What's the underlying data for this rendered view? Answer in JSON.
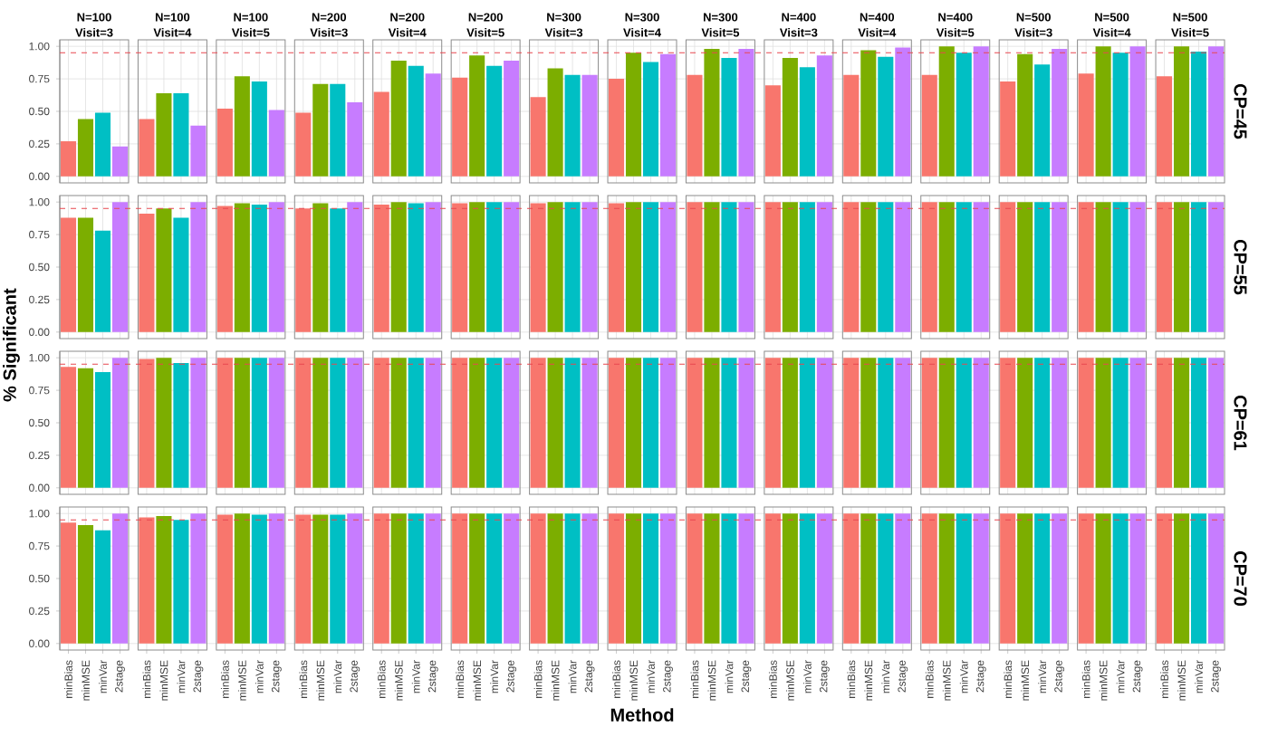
{
  "chart_data": [
    {
      "type": "bar",
      "y2label": "CP=45",
      "annotations": [
        "N=100",
        "Visit=3",
        "N=100",
        "Visit=4",
        "N=100",
        "Visit=5",
        "N=200",
        "Visit=3",
        "N=200",
        "Visit=4",
        "N=200",
        "Visit=5",
        "N=300",
        "Visit=3",
        "N=300",
        "Visit=4",
        "N=300",
        "Visit=5",
        "N=400",
        "Visit=3",
        "N=400",
        "Visit=4",
        "N=400",
        "Visit=5",
        "N=500",
        "Visit=3",
        "N=500",
        "Visit=4",
        "N=500",
        "Visit=5"
      ],
      "categories": [
        null,
        null,
        null,
        null,
        null,
        null,
        null,
        null,
        null,
        null,
        null,
        null,
        null,
        null,
        null,
        null,
        null,
        null,
        null,
        null,
        null,
        null,
        null,
        null,
        null,
        null,
        null,
        null,
        null,
        null,
        null,
        null,
        null,
        null,
        null,
        null,
        null,
        null,
        null,
        null,
        null,
        null,
        null,
        null,
        null,
        null,
        null,
        null,
        null,
        null,
        null,
        null,
        null,
        null,
        null,
        null,
        null,
        null,
        null,
        null
      ],
      "values": [
        0.27,
        0.44,
        0.49,
        0.23,
        0.44,
        0.64,
        0.64,
        0.39,
        0.52,
        0.77,
        0.73,
        0.51,
        0.49,
        0.71,
        0.71,
        0.57,
        0.65,
        0.89,
        0.85,
        0.79,
        0.76,
        0.93,
        0.85,
        0.89,
        0.61,
        0.83,
        0.78,
        0.78,
        0.75,
        0.95,
        0.88,
        0.94,
        0.78,
        0.98,
        0.91,
        0.98,
        0.7,
        0.91,
        0.84,
        0.93,
        0.78,
        0.97,
        0.92,
        0.99,
        0.78,
        1.0,
        0.95,
        1.0,
        0.73,
        0.94,
        0.86,
        0.98,
        0.79,
        1.0,
        0.95,
        1.0,
        0.77,
        1.0,
        0.96,
        1.0
      ],
      "colors": [
        "#f8766d",
        "#7cae00",
        "#00bfc4",
        "#c77cff",
        "#f8766d",
        "#7cae00",
        "#00bfc4",
        "#c77cff",
        "#f8766d",
        "#7cae00",
        "#00bfc4",
        "#c77cff",
        "#f8766d",
        "#7cae00",
        "#00bfc4",
        "#c77cff",
        "#f8766d",
        "#7cae00",
        "#00bfc4",
        "#c77cff",
        "#f8766d",
        "#7cae00",
        "#00bfc4",
        "#c77cff",
        "#f8766d",
        "#7cae00",
        "#00bfc4",
        "#c77cff",
        "#f8766d",
        "#7cae00",
        "#00bfc4",
        "#c77cff",
        "#f8766d",
        "#7cae00",
        "#00bfc4",
        "#c77cff",
        "#f8766d",
        "#7cae00",
        "#00bfc4",
        "#c77cff",
        "#f8766d",
        "#7cae00",
        "#00bfc4",
        "#c77cff",
        "#f8766d",
        "#7cae00",
        "#00bfc4",
        "#c77cff",
        "#f8766d",
        "#7cae00",
        "#00bfc4",
        "#c77cff",
        "#f8766d",
        "#7cae00",
        "#00bfc4",
        "#c77cff",
        "#f8766d",
        "#7cae00",
        "#00bfc4",
        "#c77cff"
      ],
      "ylim": [
        -0.05,
        1.05
      ],
      "yticks": [
        {
          "value": 0,
          "label": "0.00"
        },
        {
          "value": 0.25,
          "label": "0.25"
        },
        {
          "value": 0.5,
          "label": "0.50"
        },
        {
          "value": 0.75,
          "label": "0.75"
        },
        {
          "value": 1,
          "label": "1.00"
        }
      ],
      "ref_lines": [
        {
          "axis": "y",
          "value": 0.95,
          "color": "#e8474f",
          "line_style": "dashed"
        }
      ],
      "grid": true,
      "tick_labels": "y"
    },
    {
      "type": "bar",
      "y2label": "CP=55",
      "ylabel": "% Significant",
      "categories": [
        null,
        null,
        null,
        null,
        null,
        null,
        null,
        null,
        null,
        null,
        null,
        null,
        null,
        null,
        null,
        null,
        null,
        null,
        null,
        null,
        null,
        null,
        null,
        null,
        null,
        null,
        null,
        null,
        null,
        null,
        null,
        null,
        null,
        null,
        null,
        null,
        null,
        null,
        null,
        null,
        null,
        null,
        null,
        null,
        null,
        null,
        null,
        null,
        null,
        null,
        null,
        null,
        null,
        null,
        null,
        null,
        null,
        null,
        null,
        null
      ],
      "values": [
        0.88,
        0.88,
        0.78,
        1.0,
        0.91,
        0.95,
        0.88,
        1.0,
        0.97,
        0.99,
        0.98,
        1.0,
        0.95,
        0.99,
        0.95,
        1.0,
        0.98,
        1.0,
        0.99,
        1.0,
        0.99,
        1.0,
        1.0,
        1.0,
        0.99,
        1.0,
        1.0,
        1.0,
        0.99,
        1.0,
        1.0,
        1.0,
        1.0,
        1.0,
        1.0,
        1.0,
        1.0,
        1.0,
        1.0,
        1.0,
        1.0,
        1.0,
        1.0,
        1.0,
        1.0,
        1.0,
        1.0,
        1.0,
        1.0,
        1.0,
        1.0,
        1.0,
        1.0,
        1.0,
        1.0,
        1.0,
        1.0,
        1.0,
        1.0,
        1.0
      ],
      "colors": [
        "#f8766d",
        "#7cae00",
        "#00bfc4",
        "#c77cff",
        "#f8766d",
        "#7cae00",
        "#00bfc4",
        "#c77cff",
        "#f8766d",
        "#7cae00",
        "#00bfc4",
        "#c77cff",
        "#f8766d",
        "#7cae00",
        "#00bfc4",
        "#c77cff",
        "#f8766d",
        "#7cae00",
        "#00bfc4",
        "#c77cff",
        "#f8766d",
        "#7cae00",
        "#00bfc4",
        "#c77cff",
        "#f8766d",
        "#7cae00",
        "#00bfc4",
        "#c77cff",
        "#f8766d",
        "#7cae00",
        "#00bfc4",
        "#c77cff",
        "#f8766d",
        "#7cae00",
        "#00bfc4",
        "#c77cff",
        "#f8766d",
        "#7cae00",
        "#00bfc4",
        "#c77cff",
        "#f8766d",
        "#7cae00",
        "#00bfc4",
        "#c77cff",
        "#f8766d",
        "#7cae00",
        "#00bfc4",
        "#c77cff",
        "#f8766d",
        "#7cae00",
        "#00bfc4",
        "#c77cff",
        "#f8766d",
        "#7cae00",
        "#00bfc4",
        "#c77cff",
        "#f8766d",
        "#7cae00",
        "#00bfc4",
        "#c77cff"
      ],
      "ylim": [
        -0.05,
        1.05
      ],
      "yticks": [
        {
          "value": 0,
          "label": "0.00"
        },
        {
          "value": 0.25,
          "label": "0.25"
        },
        {
          "value": 0.5,
          "label": "0.50"
        },
        {
          "value": 0.75,
          "label": "0.75"
        },
        {
          "value": 1,
          "label": "1.00"
        }
      ],
      "ref_lines": [
        {
          "axis": "y",
          "value": 0.95,
          "color": "#e8474f",
          "line_style": "dashed"
        }
      ],
      "grid": true,
      "tick_labels": "y"
    },
    {
      "type": "bar",
      "y2label": "CP=61",
      "categories": [
        null,
        null,
        null,
        null,
        null,
        null,
        null,
        null,
        null,
        null,
        null,
        null,
        null,
        null,
        null,
        null,
        null,
        null,
        null,
        null,
        null,
        null,
        null,
        null,
        null,
        null,
        null,
        null,
        null,
        null,
        null,
        null,
        null,
        null,
        null,
        null,
        null,
        null,
        null,
        null,
        null,
        null,
        null,
        null,
        null,
        null,
        null,
        null,
        null,
        null,
        null,
        null,
        null,
        null,
        null,
        null,
        null,
        null,
        null,
        null
      ],
      "values": [
        0.93,
        0.92,
        0.89,
        1.0,
        0.99,
        1.0,
        0.96,
        1.0,
        1.0,
        1.0,
        1.0,
        1.0,
        1.0,
        1.0,
        1.0,
        1.0,
        1.0,
        1.0,
        1.0,
        1.0,
        1.0,
        1.0,
        1.0,
        1.0,
        1.0,
        1.0,
        1.0,
        1.0,
        1.0,
        1.0,
        1.0,
        1.0,
        1.0,
        1.0,
        1.0,
        1.0,
        1.0,
        1.0,
        1.0,
        1.0,
        1.0,
        1.0,
        1.0,
        1.0,
        1.0,
        1.0,
        1.0,
        1.0,
        1.0,
        1.0,
        1.0,
        1.0,
        1.0,
        1.0,
        1.0,
        1.0,
        1.0,
        1.0,
        1.0,
        1.0
      ],
      "colors": [
        "#f8766d",
        "#7cae00",
        "#00bfc4",
        "#c77cff",
        "#f8766d",
        "#7cae00",
        "#00bfc4",
        "#c77cff",
        "#f8766d",
        "#7cae00",
        "#00bfc4",
        "#c77cff",
        "#f8766d",
        "#7cae00",
        "#00bfc4",
        "#c77cff",
        "#f8766d",
        "#7cae00",
        "#00bfc4",
        "#c77cff",
        "#f8766d",
        "#7cae00",
        "#00bfc4",
        "#c77cff",
        "#f8766d",
        "#7cae00",
        "#00bfc4",
        "#c77cff",
        "#f8766d",
        "#7cae00",
        "#00bfc4",
        "#c77cff",
        "#f8766d",
        "#7cae00",
        "#00bfc4",
        "#c77cff",
        "#f8766d",
        "#7cae00",
        "#00bfc4",
        "#c77cff",
        "#f8766d",
        "#7cae00",
        "#00bfc4",
        "#c77cff",
        "#f8766d",
        "#7cae00",
        "#00bfc4",
        "#c77cff",
        "#f8766d",
        "#7cae00",
        "#00bfc4",
        "#c77cff",
        "#f8766d",
        "#7cae00",
        "#00bfc4",
        "#c77cff",
        "#f8766d",
        "#7cae00",
        "#00bfc4",
        "#c77cff"
      ],
      "ylim": [
        -0.05,
        1.05
      ],
      "yticks": [
        {
          "value": 0,
          "label": "0.00"
        },
        {
          "value": 0.25,
          "label": "0.25"
        },
        {
          "value": 0.5,
          "label": "0.50"
        },
        {
          "value": 0.75,
          "label": "0.75"
        },
        {
          "value": 1,
          "label": "1.00"
        }
      ],
      "ref_lines": [
        {
          "axis": "y",
          "value": 0.95,
          "color": "#e8474f",
          "line_style": "dashed"
        }
      ],
      "grid": true,
      "tick_labels": "y"
    },
    {
      "type": "bar",
      "y2label": "CP=70",
      "xlabel": "Method",
      "categories": [
        "minBias",
        "minMSE",
        "minVar",
        "2stage",
        "minBias",
        "minMSE",
        "minVar",
        "2stage",
        "minBias",
        "minMSE",
        "minVar",
        "2stage",
        "minBias",
        "minMSE",
        "minVar",
        "2stage",
        "minBias",
        "minMSE",
        "minVar",
        "2stage",
        "minBias",
        "minMSE",
        "minVar",
        "2stage",
        "minBias",
        "minMSE",
        "minVar",
        "2stage",
        "minBias",
        "minMSE",
        "minVar",
        "2stage",
        "minBias",
        "minMSE",
        "minVar",
        "2stage",
        "minBias",
        "minMSE",
        "minVar",
        "2stage",
        "minBias",
        "minMSE",
        "minVar",
        "2stage",
        "minBias",
        "minMSE",
        "minVar",
        "2stage",
        "minBias",
        "minMSE",
        "minVar",
        "2stage",
        "minBias",
        "minMSE",
        "minVar",
        "2stage",
        "minBias",
        "minMSE",
        "minVar",
        "2stage"
      ],
      "values": [
        0.93,
        0.91,
        0.87,
        1.0,
        0.97,
        0.98,
        0.95,
        1.0,
        0.99,
        1.0,
        0.99,
        1.0,
        0.99,
        0.99,
        0.99,
        1.0,
        1.0,
        1.0,
        1.0,
        1.0,
        1.0,
        1.0,
        1.0,
        1.0,
        1.0,
        1.0,
        1.0,
        1.0,
        1.0,
        1.0,
        1.0,
        1.0,
        1.0,
        1.0,
        1.0,
        1.0,
        1.0,
        1.0,
        1.0,
        1.0,
        1.0,
        1.0,
        1.0,
        1.0,
        1.0,
        1.0,
        1.0,
        1.0,
        1.0,
        1.0,
        1.0,
        1.0,
        1.0,
        1.0,
        1.0,
        1.0,
        1.0,
        1.0,
        1.0,
        1.0
      ],
      "colors": [
        "#f8766d",
        "#7cae00",
        "#00bfc4",
        "#c77cff",
        "#f8766d",
        "#7cae00",
        "#00bfc4",
        "#c77cff",
        "#f8766d",
        "#7cae00",
        "#00bfc4",
        "#c77cff",
        "#f8766d",
        "#7cae00",
        "#00bfc4",
        "#c77cff",
        "#f8766d",
        "#7cae00",
        "#00bfc4",
        "#c77cff",
        "#f8766d",
        "#7cae00",
        "#00bfc4",
        "#c77cff",
        "#f8766d",
        "#7cae00",
        "#00bfc4",
        "#c77cff",
        "#f8766d",
        "#7cae00",
        "#00bfc4",
        "#c77cff",
        "#f8766d",
        "#7cae00",
        "#00bfc4",
        "#c77cff",
        "#f8766d",
        "#7cae00",
        "#00bfc4",
        "#c77cff",
        "#f8766d",
        "#7cae00",
        "#00bfc4",
        "#c77cff",
        "#f8766d",
        "#7cae00",
        "#00bfc4",
        "#c77cff",
        "#f8766d",
        "#7cae00",
        "#00bfc4",
        "#c77cff",
        "#f8766d",
        "#7cae00",
        "#00bfc4",
        "#c77cff",
        "#f8766d",
        "#7cae00",
        "#00bfc4",
        "#c77cff"
      ],
      "ylim": [
        -0.05,
        1.05
      ],
      "yticks": [
        {
          "value": 0,
          "label": "0.00"
        },
        {
          "value": 0.25,
          "label": "0.25"
        },
        {
          "value": 0.5,
          "label": "0.50"
        },
        {
          "value": 0.75,
          "label": "0.75"
        },
        {
          "value": 1,
          "label": "1.00"
        }
      ],
      "ref_lines": [
        {
          "axis": "y",
          "value": 0.95,
          "color": "#e8474f",
          "line_style": "dashed"
        }
      ],
      "grid": true
    }
  ]
}
